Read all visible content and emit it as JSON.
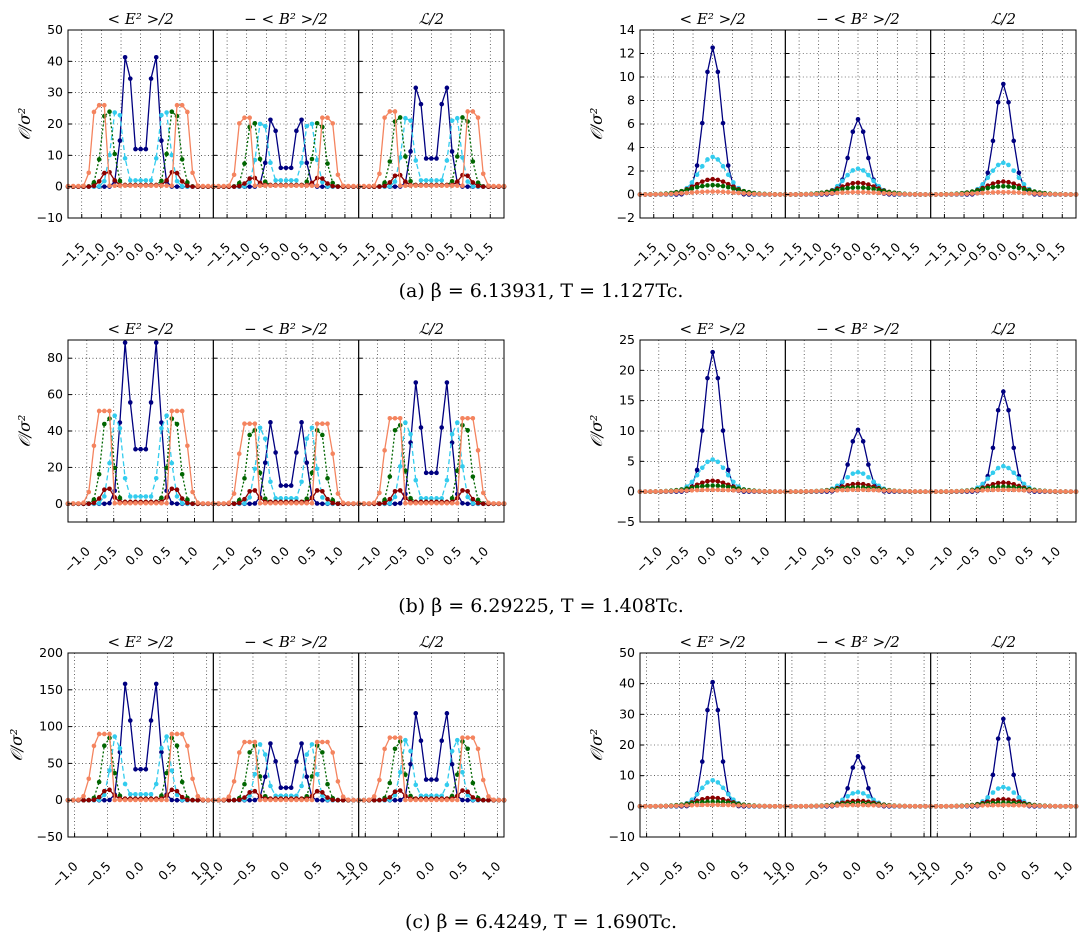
{
  "figure": {
    "colors": {
      "ring0": "#000080",
      "ring1": "#33ccee",
      "ring2": "#006600",
      "ring3": "#8b0000",
      "ring4": "#f4845f"
    },
    "panel_titles": [
      "< E² >/2",
      "− < B² >/2",
      "ℒ/2"
    ],
    "ylabel": "𝒪/σ²",
    "rows": [
      {
        "caption": "(a) β = 6.13931, T = 1.127Tc."
      },
      {
        "caption": "(b) β = 6.29225, T = 1.408Tc."
      },
      {
        "caption": "(c) β = 6.4249, T = 1.690Tc."
      }
    ]
  },
  "chart_data": [
    {
      "type": "line",
      "row": "a",
      "side": "left",
      "panel_titles": [
        "< E² >/2",
        "− < B² >/2",
        "ℒ/2"
      ],
      "ylabel": "𝒪/σ²",
      "xlabel": "",
      "xlim": [
        -1.85,
        1.85
      ],
      "ylim": [
        -10,
        50
      ],
      "xticks": [
        "−1.5",
        "−1.0",
        "−0.5",
        "0.0",
        "0.5",
        "1.0",
        "1.5"
      ],
      "xtick_values": [
        -1.5,
        -1.0,
        -0.5,
        0.0,
        0.5,
        1.0,
        1.5
      ],
      "yticks": [
        "−10",
        "0",
        "10",
        "20",
        "30",
        "40",
        "50"
      ],
      "ytick_values": [
        -10,
        0,
        10,
        20,
        30,
        40,
        50
      ],
      "grid": true,
      "series_shape": "double_peak",
      "series": [
        {
          "color_key": "ring0",
          "dashed": false,
          "peak_pos": [
            0.35,
            0.35,
            0.35
          ],
          "peak": [
            44.5,
            23,
            34
          ],
          "width": [
            0.12,
            0.12,
            0.12
          ],
          "center": [
            12,
            6,
            9
          ]
        },
        {
          "color_key": "ring1",
          "dashed": true,
          "peak_pos": [
            0.6,
            0.6,
            0.6
          ],
          "peak": [
            26,
            22,
            24
          ],
          "width": [
            0.14,
            0.14,
            0.14
          ],
          "center": [
            2,
            2,
            2
          ]
        },
        {
          "color_key": "ring2",
          "dashed": true,
          "peak_pos": [
            0.85,
            0.85,
            0.85
          ],
          "peak": [
            26,
            22,
            24
          ],
          "width": [
            0.14,
            0.14,
            0.14
          ],
          "center": [
            0.5,
            0.5,
            0.5
          ]
        },
        {
          "color_key": "ring3",
          "dashed": false,
          "peak_pos": [
            0.85,
            0.85,
            0.85
          ],
          "peak": [
            5,
            3,
            4
          ],
          "width": [
            0.14,
            0.14,
            0.14
          ],
          "center": [
            0.5,
            0.5,
            0.5
          ]
        },
        {
          "color_key": "ring4",
          "dashed": false,
          "plateau": [
            1.15,
            1.15,
            1.15
          ],
          "peak": [
            26,
            22,
            24
          ]
        }
      ]
    },
    {
      "type": "line",
      "row": "a",
      "side": "right",
      "panel_titles": [
        "< E² >/2",
        "− < B² >/2",
        "ℒ/2"
      ],
      "ylabel": "𝒪/σ²",
      "xlabel": "",
      "xlim": [
        -1.85,
        1.85
      ],
      "ylim": [
        -2,
        14
      ],
      "xticks": [
        "−1.5",
        "−1.0",
        "−0.5",
        "0.0",
        "0.5",
        "1.0",
        "1.5"
      ],
      "xtick_values": [
        -1.5,
        -1.0,
        -0.5,
        0.0,
        0.5,
        1.0,
        1.5
      ],
      "yticks": [
        "−2",
        "0",
        "2",
        "4",
        "6",
        "8",
        "10",
        "12",
        "14"
      ],
      "ytick_values": [
        -2,
        0,
        2,
        4,
        6,
        8,
        10,
        12,
        14
      ],
      "grid": true,
      "series_shape": "single_peak",
      "series": [
        {
          "color_key": "ring0",
          "dashed": false,
          "peak": [
            12.5,
            6.4,
            9.4
          ],
          "width": [
            0.22,
            0.22,
            0.22
          ]
        },
        {
          "color_key": "ring1",
          "dashed": true,
          "peak": [
            3.2,
            2.2,
            2.7
          ],
          "width": [
            0.35,
            0.35,
            0.35
          ]
        },
        {
          "color_key": "ring3",
          "dashed": false,
          "peak": [
            1.3,
            1.0,
            1.1
          ],
          "width": [
            0.45,
            0.45,
            0.45
          ]
        },
        {
          "color_key": "ring2",
          "dashed": true,
          "peak": [
            0.8,
            0.6,
            0.7
          ],
          "width": [
            0.55,
            0.55,
            0.55
          ]
        },
        {
          "color_key": "ring4",
          "dashed": false,
          "peak": [
            0.25,
            0.2,
            0.2
          ],
          "width": [
            0.6,
            0.6,
            0.6
          ]
        }
      ]
    },
    {
      "type": "line",
      "row": "b",
      "side": "left",
      "panel_titles": [
        "< E² >/2",
        "− < B² >/2",
        "ℒ/2"
      ],
      "ylabel": "𝒪/σ²",
      "xlabel": "",
      "xlim": [
        -1.35,
        1.35
      ],
      "ylim": [
        -10,
        90
      ],
      "xticks": [
        "−1.0",
        "−0.5",
        "0.0",
        "0.5",
        "1.0"
      ],
      "xtick_values": [
        -1.0,
        -0.5,
        0.0,
        0.5,
        1.0
      ],
      "yticks": [
        "0",
        "20",
        "40",
        "60",
        "80"
      ],
      "ytick_values": [
        0,
        20,
        40,
        60,
        80
      ],
      "grid": true,
      "series_shape": "double_peak",
      "series": [
        {
          "color_key": "ring0",
          "dashed": false,
          "peak_pos": [
            0.28,
            0.28,
            0.28
          ],
          "peak": [
            89,
            45,
            67
          ],
          "width": [
            0.09,
            0.09,
            0.09
          ],
          "center": [
            30,
            10,
            17
          ]
        },
        {
          "color_key": "ring1",
          "dashed": true,
          "peak_pos": [
            0.45,
            0.45,
            0.45
          ],
          "peak": [
            51,
            44,
            47
          ],
          "width": [
            0.1,
            0.1,
            0.1
          ],
          "center": [
            4,
            3,
            3
          ]
        },
        {
          "color_key": "ring2",
          "dashed": true,
          "peak_pos": [
            0.62,
            0.62,
            0.62
          ],
          "peak": [
            51,
            44,
            47
          ],
          "width": [
            0.1,
            0.1,
            0.1
          ],
          "center": [
            1,
            1,
            1
          ]
        },
        {
          "color_key": "ring3",
          "dashed": false,
          "peak_pos": [
            0.62,
            0.62,
            0.62
          ],
          "peak": [
            9,
            8,
            8
          ],
          "width": [
            0.1,
            0.1,
            0.1
          ],
          "center": [
            1,
            1,
            1
          ]
        },
        {
          "color_key": "ring4",
          "dashed": false,
          "plateau": [
            0.78,
            0.78,
            0.78
          ],
          "peak": [
            51,
            44,
            47
          ]
        }
      ]
    },
    {
      "type": "line",
      "row": "b",
      "side": "right",
      "panel_titles": [
        "< E² >/2",
        "− < B² >/2",
        "ℒ/2"
      ],
      "ylabel": "𝒪/σ²",
      "xlabel": "",
      "xlim": [
        -1.35,
        1.35
      ],
      "ylim": [
        -5,
        25
      ],
      "xticks": [
        "−1.0",
        "−0.5",
        "0.0",
        "0.5",
        "1.0"
      ],
      "xtick_values": [
        -1.0,
        -0.5,
        0.0,
        0.5,
        1.0
      ],
      "yticks": [
        "−5",
        "0",
        "5",
        "10",
        "15",
        "20",
        "25"
      ],
      "ytick_values": [
        -5,
        0,
        5,
        10,
        15,
        20,
        25
      ],
      "grid": true,
      "series_shape": "single_peak",
      "series": [
        {
          "color_key": "ring0",
          "dashed": false,
          "peak": [
            23,
            10.2,
            16.5
          ],
          "width": [
            0.15,
            0.15,
            0.15
          ]
        },
        {
          "color_key": "ring1",
          "dashed": true,
          "peak": [
            5.3,
            3.2,
            4.2
          ],
          "width": [
            0.25,
            0.25,
            0.25
          ]
        },
        {
          "color_key": "ring3",
          "dashed": false,
          "peak": [
            1.8,
            1.3,
            1.5
          ],
          "width": [
            0.3,
            0.3,
            0.3
          ]
        },
        {
          "color_key": "ring2",
          "dashed": true,
          "peak": [
            1.0,
            0.7,
            0.8
          ],
          "width": [
            0.4,
            0.4,
            0.4
          ]
        },
        {
          "color_key": "ring4",
          "dashed": false,
          "peak": [
            0.3,
            0.3,
            0.3
          ],
          "width": [
            0.5,
            0.5,
            0.5
          ]
        }
      ]
    },
    {
      "type": "line",
      "row": "c",
      "side": "left",
      "panel_titles": [
        "< E² >/2",
        "− < B² >/2",
        "ℒ/2"
      ],
      "ylabel": "𝒪/σ²",
      "xlabel": "",
      "xlim": [
        -1.1,
        1.1
      ],
      "ylim": [
        -50,
        200
      ],
      "xticks": [
        "−1.0",
        "−0.5",
        "0.0",
        "0.5",
        "1.0"
      ],
      "xtick_values": [
        -1.0,
        -0.5,
        0.0,
        0.5,
        1.0
      ],
      "yticks": [
        "−50",
        "0",
        "50",
        "100",
        "150",
        "200"
      ],
      "ytick_values": [
        -50,
        0,
        50,
        100,
        150,
        200
      ],
      "grid": true,
      "series_shape": "double_peak",
      "series": [
        {
          "color_key": "ring0",
          "dashed": false,
          "peak_pos": [
            0.22,
            0.22,
            0.22
          ],
          "peak": [
            162,
            79,
            121
          ],
          "width": [
            0.07,
            0.07,
            0.07
          ],
          "center": [
            42,
            17,
            28
          ]
        },
        {
          "color_key": "ring1",
          "dashed": true,
          "peak_pos": [
            0.37,
            0.37,
            0.37
          ],
          "peak": [
            90,
            79,
            85
          ],
          "width": [
            0.08,
            0.08,
            0.08
          ],
          "center": [
            8,
            6,
            6
          ]
        },
        {
          "color_key": "ring2",
          "dashed": true,
          "peak_pos": [
            0.5,
            0.5,
            0.5
          ],
          "peak": [
            90,
            79,
            85
          ],
          "width": [
            0.08,
            0.08,
            0.08
          ],
          "center": [
            2,
            2,
            2
          ]
        },
        {
          "color_key": "ring3",
          "dashed": false,
          "peak_pos": [
            0.5,
            0.5,
            0.5
          ],
          "peak": [
            15,
            13,
            14
          ],
          "width": [
            0.08,
            0.08,
            0.08
          ],
          "center": [
            2,
            2,
            2
          ]
        },
        {
          "color_key": "ring4",
          "dashed": false,
          "plateau": [
            0.65,
            0.65,
            0.65
          ],
          "peak": [
            90,
            79,
            85
          ]
        }
      ]
    },
    {
      "type": "line",
      "row": "c",
      "side": "right",
      "panel_titles": [
        "< E² >/2",
        "− < B² >/2",
        "ℒ/2"
      ],
      "ylabel": "𝒪/σ²",
      "xlabel": "",
      "xlim": [
        -1.1,
        1.1
      ],
      "ylim": [
        -10,
        50
      ],
      "xticks": [
        "−1.0",
        "−0.5",
        "0.0",
        "0.5",
        "1.0"
      ],
      "xtick_values": [
        -1.0,
        -0.5,
        0.0,
        0.5,
        1.0
      ],
      "yticks": [
        "−10",
        "0",
        "10",
        "20",
        "30",
        "40",
        "50"
      ],
      "ytick_values": [
        -10,
        0,
        10,
        20,
        30,
        40,
        50
      ],
      "grid": true,
      "series_shape": "single_peak",
      "series": [
        {
          "color_key": "ring0",
          "dashed": false,
          "peak": [
            40.5,
            16.3,
            28.5
          ],
          "width": [
            0.11,
            0.11,
            0.11
          ]
        },
        {
          "color_key": "ring1",
          "dashed": true,
          "peak": [
            8.5,
            4.6,
            6.3
          ],
          "width": [
            0.19,
            0.19,
            0.19
          ]
        },
        {
          "color_key": "ring3",
          "dashed": false,
          "peak": [
            2.8,
            1.8,
            2.3
          ],
          "width": [
            0.25,
            0.25,
            0.25
          ]
        },
        {
          "color_key": "ring2",
          "dashed": true,
          "peak": [
            1.5,
            1.0,
            1.2
          ],
          "width": [
            0.33,
            0.33,
            0.33
          ]
        },
        {
          "color_key": "ring4",
          "dashed": false,
          "peak": [
            0.5,
            0.4,
            0.4
          ],
          "width": [
            0.4,
            0.4,
            0.4
          ]
        }
      ]
    }
  ]
}
